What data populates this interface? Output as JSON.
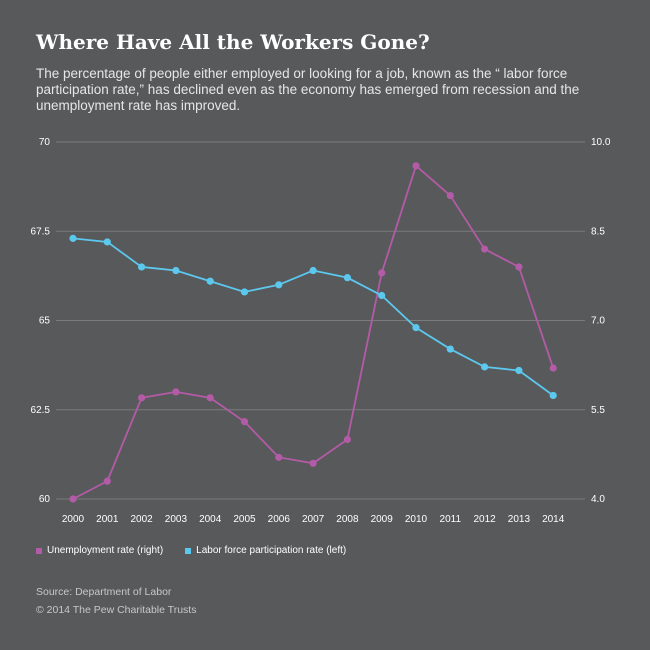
{
  "header": {
    "title": "Where Have All the Workers Gone?",
    "subtitle": "The percentage of people either employed or looking for a job, known as the “ labor force participation rate,” has declined even as the economy has emerged from recession and the unemployment rate has improved."
  },
  "legend": {
    "unemployment": "Unemployment rate (right)",
    "participation": "Labor force participation rate (left)"
  },
  "footer": {
    "source": "Source: Department of Labor",
    "credit": "© 2014 The Pew Charitable Trusts"
  },
  "colors": {
    "background": "#58595b",
    "unemployment": "#b35ba6",
    "participation": "#5cc8ee",
    "grid": "#7a7b7d"
  },
  "chart_data": {
    "type": "line",
    "x": [
      "2000",
      "2001",
      "2002",
      "2003",
      "2004",
      "2005",
      "2006",
      "2007",
      "2008",
      "2009",
      "2010",
      "2011",
      "2012",
      "2013",
      "2014"
    ],
    "left_axis": {
      "ylim": [
        60,
        70
      ],
      "ticks": [
        "60",
        "62.5",
        "65",
        "67.5",
        "70"
      ]
    },
    "right_axis": {
      "ylim": [
        4.0,
        10.0
      ],
      "ticks": [
        "4.0",
        "5.5",
        "7.0",
        "8.5",
        "10.0"
      ]
    },
    "grid": true,
    "legend_position": "bottom-left",
    "series": [
      {
        "name": "Unemployment rate (right)",
        "axis": "right",
        "values": [
          4.0,
          4.3,
          5.7,
          5.8,
          5.7,
          5.3,
          4.7,
          4.6,
          5.0,
          7.8,
          9.6,
          9.1,
          8.2,
          7.9,
          6.2
        ]
      },
      {
        "name": "Labor force participation rate (left)",
        "axis": "left",
        "values": [
          67.3,
          67.2,
          66.5,
          66.4,
          66.1,
          65.8,
          66.0,
          66.4,
          66.2,
          65.7,
          64.8,
          64.2,
          63.7,
          63.6,
          62.9
        ]
      }
    ]
  }
}
